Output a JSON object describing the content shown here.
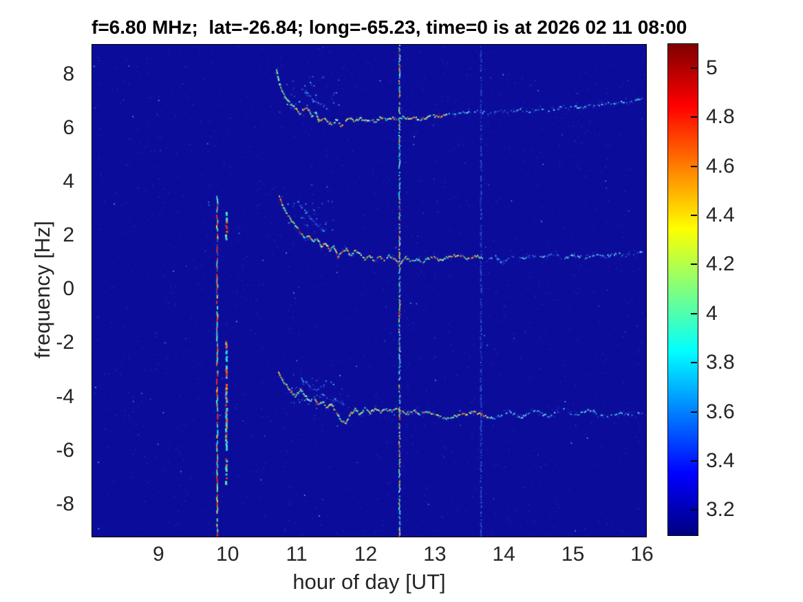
{
  "title": "f=6.80 MHz;  lat=-26.84; long=-65.23, time=0 is at 2026 02 11 08:00",
  "chart_data": {
    "type": "heatmap",
    "subtype": "doppler-spectrogram",
    "colormap": "jet",
    "xlabel": "hour of day [UT]",
    "ylabel": "frequency [Hz]",
    "x_ticks": [
      9,
      10,
      11,
      12,
      13,
      14,
      15,
      16
    ],
    "y_ticks": [
      8,
      6,
      4,
      2,
      0,
      -2,
      -4,
      -6,
      -8
    ],
    "xlim": [
      8.03,
      16.05
    ],
    "ylim": [
      -9.18,
      9.12
    ],
    "grid": false,
    "background_color": "#0c0c9b",
    "colorbar": {
      "ticks": [
        5,
        4.8,
        4.6,
        4.4,
        4.2,
        4,
        3.8,
        3.6,
        3.4,
        3.2
      ],
      "lim": [
        3.1,
        5.1
      ],
      "position": "right"
    },
    "palettes": {
      "bright": [
        "#2ae2de",
        "#2ae2de",
        "#5ceea4",
        "#9ff25e",
        "#e8f03c",
        "#f0b52e",
        "#ea5a22",
        "#e03220",
        "#d8f8f2"
      ],
      "faintTrace": [
        "#2747cc",
        "#3058d4",
        "#38c2e0",
        "#2f86dc",
        "#9adef0",
        "#56e8e0"
      ],
      "echo": [
        "#1e34c0",
        "#2a4fd0",
        "#3568d8",
        "#27b8d8"
      ],
      "halo": [
        "#141fae",
        "#1828b8",
        "#1e32c2"
      ],
      "mixedHot": [
        "#e03220",
        "#e03220",
        "#ea6a22",
        "#e8d83c",
        "#2ae2de",
        "#2ae2de",
        "#44b8e8",
        "#5ceea4",
        "#2a48d0"
      ],
      "mixedHot2": [
        "#e03220",
        "#ea6a22",
        "#2ae2de",
        "#2ae2de",
        "#40c8e8",
        "#5ceea4",
        "#e8d83c"
      ],
      "cyanMix": [
        "#2ae2de",
        "#2ae2de",
        "#3cc8e8",
        "#5ceea4",
        "#5ceea4",
        "#2a55d4",
        "#e8d83c",
        "#ea5a22",
        "#baf6ee"
      ],
      "faintBlue": [
        "#1f30b8",
        "#2440cc",
        "#2c50d4",
        "#2440cc",
        "#3868d8"
      ],
      "noiseFaint": [
        "#1016a6",
        "#141ab0",
        "#181fba",
        "#1c25c0",
        "#2130c8"
      ],
      "noiseBright": [
        "#2a3fd0",
        "#3355d8",
        "#2ab0d8",
        "#44d2e0"
      ]
    },
    "traces": [
      {
        "name": "upper-doppler-trace",
        "palette": "bright",
        "faint_palette": "faintTrace",
        "fade_after": 13.15,
        "gap": 0.15,
        "faint_gap": 0.45,
        "points": [
          [
            10.69,
            8.2
          ],
          [
            10.73,
            7.7
          ],
          [
            10.78,
            7.35
          ],
          [
            10.84,
            7.1
          ],
          [
            10.9,
            6.9
          ],
          [
            10.97,
            6.78
          ],
          [
            11.02,
            6.55
          ],
          [
            11.08,
            6.72
          ],
          [
            11.14,
            6.78
          ],
          [
            11.2,
            6.5
          ],
          [
            11.26,
            6.62
          ],
          [
            11.3,
            6.3
          ],
          [
            11.37,
            6.42
          ],
          [
            11.44,
            6.25
          ],
          [
            11.5,
            6.2
          ],
          [
            11.56,
            6.35
          ],
          [
            11.62,
            6.12
          ],
          [
            11.68,
            6.28
          ],
          [
            11.75,
            6.4
          ],
          [
            11.82,
            6.3
          ],
          [
            11.9,
            6.42
          ],
          [
            11.97,
            6.3
          ],
          [
            12.05,
            6.35
          ],
          [
            12.12,
            6.28
          ],
          [
            12.2,
            6.45
          ],
          [
            12.28,
            6.35
          ],
          [
            12.36,
            6.42
          ],
          [
            12.44,
            6.38
          ],
          [
            12.52,
            6.45
          ],
          [
            12.6,
            6.4
          ],
          [
            12.68,
            6.45
          ],
          [
            12.76,
            6.35
          ],
          [
            12.85,
            6.42
          ],
          [
            12.95,
            6.5
          ],
          [
            13.05,
            6.45
          ],
          [
            13.15,
            6.52
          ],
          [
            13.3,
            6.58
          ],
          [
            13.45,
            6.62
          ],
          [
            13.6,
            6.66
          ],
          [
            13.75,
            6.6
          ],
          [
            13.9,
            6.7
          ],
          [
            14.05,
            6.64
          ],
          [
            14.2,
            6.72
          ],
          [
            14.35,
            6.66
          ],
          [
            14.5,
            6.76
          ],
          [
            14.65,
            6.7
          ],
          [
            14.8,
            6.8
          ],
          [
            14.95,
            6.86
          ],
          [
            15.1,
            6.8
          ],
          [
            15.25,
            6.88
          ],
          [
            15.4,
            6.92
          ],
          [
            15.55,
            6.98
          ],
          [
            15.7,
            7.0
          ],
          [
            15.85,
            7.05
          ],
          [
            16.0,
            7.12
          ]
        ]
      },
      {
        "name": "middle-doppler-trace",
        "palette": "bright",
        "faint_palette": "faintTrace",
        "fade_after": 13.65,
        "gap": 0.15,
        "faint_gap": 0.4,
        "points": [
          [
            10.73,
            3.5
          ],
          [
            10.78,
            3.15
          ],
          [
            10.83,
            2.88
          ],
          [
            10.9,
            2.62
          ],
          [
            10.97,
            2.38
          ],
          [
            11.04,
            2.15
          ],
          [
            11.1,
            1.95
          ],
          [
            11.16,
            2.05
          ],
          [
            11.22,
            1.8
          ],
          [
            11.28,
            1.95
          ],
          [
            11.34,
            1.62
          ],
          [
            11.4,
            1.78
          ],
          [
            11.46,
            1.5
          ],
          [
            11.52,
            1.62
          ],
          [
            11.58,
            1.25
          ],
          [
            11.64,
            1.45
          ],
          [
            11.7,
            1.55
          ],
          [
            11.76,
            1.3
          ],
          [
            11.83,
            1.48
          ],
          [
            11.9,
            1.35
          ],
          [
            11.97,
            1.18
          ],
          [
            12.04,
            1.3
          ],
          [
            12.11,
            1.1
          ],
          [
            12.18,
            1.28
          ],
          [
            12.25,
            1.12
          ],
          [
            12.32,
            1.3
          ],
          [
            12.4,
            1.15
          ],
          [
            12.48,
            1.02
          ],
          [
            12.56,
            1.22
          ],
          [
            12.64,
            1.08
          ],
          [
            12.72,
            1.18
          ],
          [
            12.8,
            1.05
          ],
          [
            12.88,
            1.18
          ],
          [
            12.96,
            1.28
          ],
          [
            13.05,
            1.12
          ],
          [
            13.15,
            1.22
          ],
          [
            13.3,
            1.32
          ],
          [
            13.45,
            1.2
          ],
          [
            13.6,
            1.28
          ],
          [
            13.72,
            1.12
          ],
          [
            13.85,
            1.3
          ],
          [
            13.95,
            1.05
          ],
          [
            14.1,
            1.28
          ],
          [
            14.25,
            1.18
          ],
          [
            14.4,
            1.32
          ],
          [
            14.55,
            1.22
          ],
          [
            14.7,
            1.35
          ],
          [
            14.85,
            1.22
          ],
          [
            15.0,
            1.3
          ],
          [
            15.15,
            1.22
          ],
          [
            15.3,
            1.35
          ],
          [
            15.45,
            1.25
          ],
          [
            15.6,
            1.38
          ],
          [
            15.75,
            1.3
          ],
          [
            15.9,
            1.38
          ],
          [
            16.02,
            1.45
          ]
        ]
      },
      {
        "name": "lower-doppler-trace",
        "palette": "bright",
        "faint_palette": "faintTrace",
        "fade_after": 13.75,
        "gap": 0.15,
        "faint_gap": 0.4,
        "points": [
          [
            10.72,
            -3.05
          ],
          [
            10.78,
            -3.35
          ],
          [
            10.84,
            -3.55
          ],
          [
            10.9,
            -3.75
          ],
          [
            10.97,
            -3.95
          ],
          [
            11.03,
            -3.68
          ],
          [
            11.1,
            -3.88
          ],
          [
            11.17,
            -4.15
          ],
          [
            11.24,
            -4.0
          ],
          [
            11.3,
            -4.25
          ],
          [
            11.36,
            -4.12
          ],
          [
            11.42,
            -4.38
          ],
          [
            11.48,
            -4.22
          ],
          [
            11.55,
            -4.5
          ],
          [
            11.62,
            -4.82
          ],
          [
            11.69,
            -4.95
          ],
          [
            11.76,
            -4.6
          ],
          [
            11.83,
            -4.42
          ],
          [
            11.9,
            -4.62
          ],
          [
            11.97,
            -4.4
          ],
          [
            12.05,
            -4.55
          ],
          [
            12.12,
            -4.38
          ],
          [
            12.2,
            -4.52
          ],
          [
            12.28,
            -4.42
          ],
          [
            12.36,
            -4.5
          ],
          [
            12.44,
            -4.4
          ],
          [
            12.52,
            -4.52
          ],
          [
            12.6,
            -4.58
          ],
          [
            12.68,
            -4.45
          ],
          [
            12.76,
            -4.62
          ],
          [
            12.85,
            -4.5
          ],
          [
            12.95,
            -4.58
          ],
          [
            13.05,
            -4.65
          ],
          [
            13.15,
            -4.78
          ],
          [
            13.25,
            -4.7
          ],
          [
            13.35,
            -4.62
          ],
          [
            13.45,
            -4.58
          ],
          [
            13.55,
            -4.52
          ],
          [
            13.65,
            -4.6
          ],
          [
            13.75,
            -4.72
          ],
          [
            13.85,
            -4.78
          ],
          [
            13.95,
            -4.62
          ],
          [
            14.05,
            -4.5
          ],
          [
            14.15,
            -4.62
          ],
          [
            14.25,
            -4.72
          ],
          [
            14.35,
            -4.55
          ],
          [
            14.45,
            -4.45
          ],
          [
            14.55,
            -4.62
          ],
          [
            14.65,
            -4.68
          ],
          [
            14.75,
            -4.52
          ],
          [
            14.85,
            -4.42
          ],
          [
            14.95,
            -4.58
          ],
          [
            15.05,
            -4.62
          ],
          [
            15.15,
            -4.5
          ],
          [
            15.25,
            -4.45
          ],
          [
            15.35,
            -4.6
          ],
          [
            15.5,
            -4.66
          ],
          [
            15.65,
            -4.55
          ],
          [
            15.8,
            -4.62
          ],
          [
            16.0,
            -4.56
          ]
        ]
      },
      {
        "name": "upper-echo-trace",
        "palette": "echo",
        "faint_palette": "echo",
        "fade_after": -99,
        "gap": 0.5,
        "faint_gap": 0.5,
        "points": [
          [
            11.05,
            7.55
          ],
          [
            11.15,
            7.28
          ],
          [
            11.25,
            7.05
          ],
          [
            11.35,
            6.88
          ],
          [
            11.45,
            6.74
          ]
        ]
      },
      {
        "name": "middle-echo-trace",
        "palette": "echo",
        "faint_palette": "echo",
        "fade_after": -99,
        "gap": 0.55,
        "faint_gap": 0.55,
        "points": [
          [
            11.0,
            3.3
          ],
          [
            11.1,
            2.95
          ],
          [
            11.2,
            2.65
          ],
          [
            11.32,
            2.35
          ],
          [
            11.42,
            2.15
          ]
        ]
      },
      {
        "name": "lower-echo-trace",
        "palette": "echo",
        "faint_palette": "echo",
        "fade_after": -99,
        "gap": 0.5,
        "faint_gap": 0.5,
        "points": [
          [
            11.05,
            -3.3
          ],
          [
            11.18,
            -3.58
          ],
          [
            11.3,
            -3.8
          ],
          [
            11.42,
            -3.98
          ],
          [
            11.55,
            -4.12
          ],
          [
            11.68,
            -4.25
          ]
        ]
      }
    ],
    "vertical_lines": [
      {
        "name": "interference-line-0983",
        "hour": 9.83,
        "palette": "mixedHot",
        "width": 2,
        "step": 0.1,
        "seglen": 5,
        "density": 0.78,
        "segments": [
          [
            3.6,
            -9.18
          ]
        ]
      },
      {
        "name": "interference-line-0996",
        "hour": 9.96,
        "palette": "mixedHot2",
        "width": 3,
        "step": 0.07,
        "seglen": 3,
        "density": 0.85,
        "segments": [
          [
            2.9,
            1.9
          ],
          [
            -1.9,
            -3.25
          ],
          [
            -3.5,
            -4.2
          ],
          [
            -4.25,
            -5.3
          ],
          [
            -5.35,
            -5.95
          ],
          [
            -6.2,
            -7.2
          ]
        ]
      },
      {
        "name": "interference-line-1365",
        "hour": 13.65,
        "palette": "faintBlue",
        "width": 2,
        "step": 0.05,
        "seglen": 2,
        "density": 0.6,
        "segments": [
          [
            9.12,
            -9.18
          ]
        ]
      },
      {
        "name": "interference-line-1247",
        "hour": 12.47,
        "palette": "cyanMix",
        "width": 2,
        "step": 0.055,
        "seglen": 2,
        "density": 0.8,
        "segments": [
          [
            9.12,
            -9.18
          ]
        ]
      }
    ],
    "scatter": [
      {
        "h": [
          10.72,
          11.6
        ],
        "f": [
          6.5,
          8.0
        ],
        "count": 35
      },
      {
        "h": [
          10.85,
          11.55
        ],
        "f": [
          1.9,
          3.4
        ],
        "count": 28
      },
      {
        "h": [
          10.85,
          11.75
        ],
        "f": [
          -3.1,
          -4.35
        ],
        "count": 35
      }
    ],
    "noise": {
      "faint_count": 2600,
      "bright_count": 120
    }
  }
}
